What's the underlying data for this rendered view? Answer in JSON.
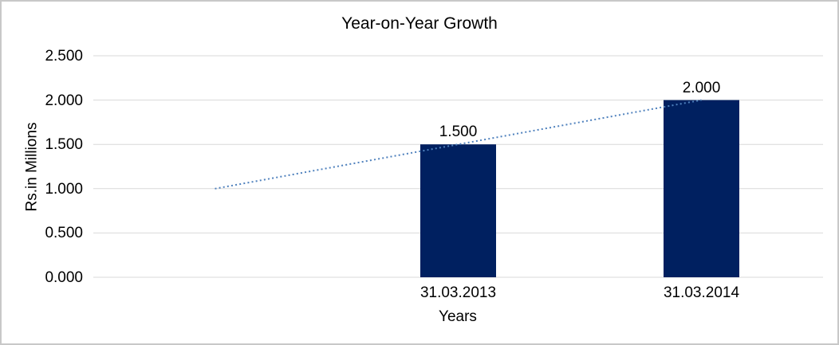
{
  "chart_data": {
    "type": "bar",
    "title": "Year-on-Year Growth",
    "xlabel": "Years",
    "ylabel": "Rs.in Millions",
    "categories": [
      "31.03.2013",
      "31.03.2014"
    ],
    "values": [
      1.5,
      2.0
    ],
    "data_labels": [
      "1.500",
      "2.000"
    ],
    "yticks": [
      {
        "value": 0.0,
        "label": "0.000"
      },
      {
        "value": 0.5,
        "label": "0.500"
      },
      {
        "value": 1.0,
        "label": "1.000"
      },
      {
        "value": 1.5,
        "label": "1.500"
      },
      {
        "value": 2.0,
        "label": "2.000"
      },
      {
        "value": 2.5,
        "label": "2.500"
      }
    ],
    "ylim": [
      0,
      2.5
    ],
    "grid": true,
    "legend": "none",
    "bar_color": "#002060",
    "gridline_color": "#d9d9d9",
    "frame_border_color": "#c8c8c8",
    "text_color": "#000000",
    "trendline": {
      "style": "dotted",
      "color": "#4f81bd",
      "points": [
        {
          "slot": 0,
          "value": 1.0
        },
        {
          "slot": 2,
          "value": 2.0
        }
      ]
    },
    "layout": {
      "leading_empty_slots": 1,
      "legend_position": "none"
    }
  }
}
